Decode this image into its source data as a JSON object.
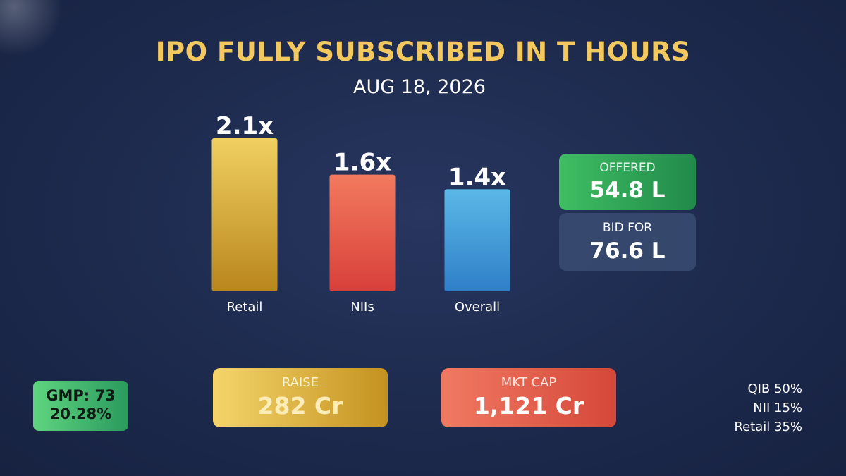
{
  "title": "IPO FULLY SUBSCRIBED IN T HOURS",
  "date": "AUG 18, 2026",
  "chart_data": {
    "type": "bar",
    "categories": [
      "Retail",
      "NIIs",
      "Overall"
    ],
    "values": [
      2.1,
      1.6,
      1.4
    ],
    "value_labels": [
      "2.1x",
      "1.6x",
      "1.4x"
    ],
    "colors": [
      "#e2b232",
      "#e5584a",
      "#3a98d6"
    ],
    "title": "",
    "xlabel": "",
    "ylabel": "",
    "ylim": [
      0,
      2.1
    ],
    "grid": false
  },
  "offered": {
    "label": "OFFERED",
    "value": "54.8 L"
  },
  "bid_for": {
    "label": "BID FOR",
    "value": "76.6 L"
  },
  "raise": {
    "label": "RAISE",
    "value": "282 Cr"
  },
  "mkt_cap": {
    "label": "MKT CAP",
    "value": "1,121 Cr"
  },
  "gmp": {
    "line1": "GMP: 73",
    "line2": "20.28%"
  },
  "allocation": [
    "QIB 50%",
    "NII 15%",
    "Retail 35%"
  ]
}
